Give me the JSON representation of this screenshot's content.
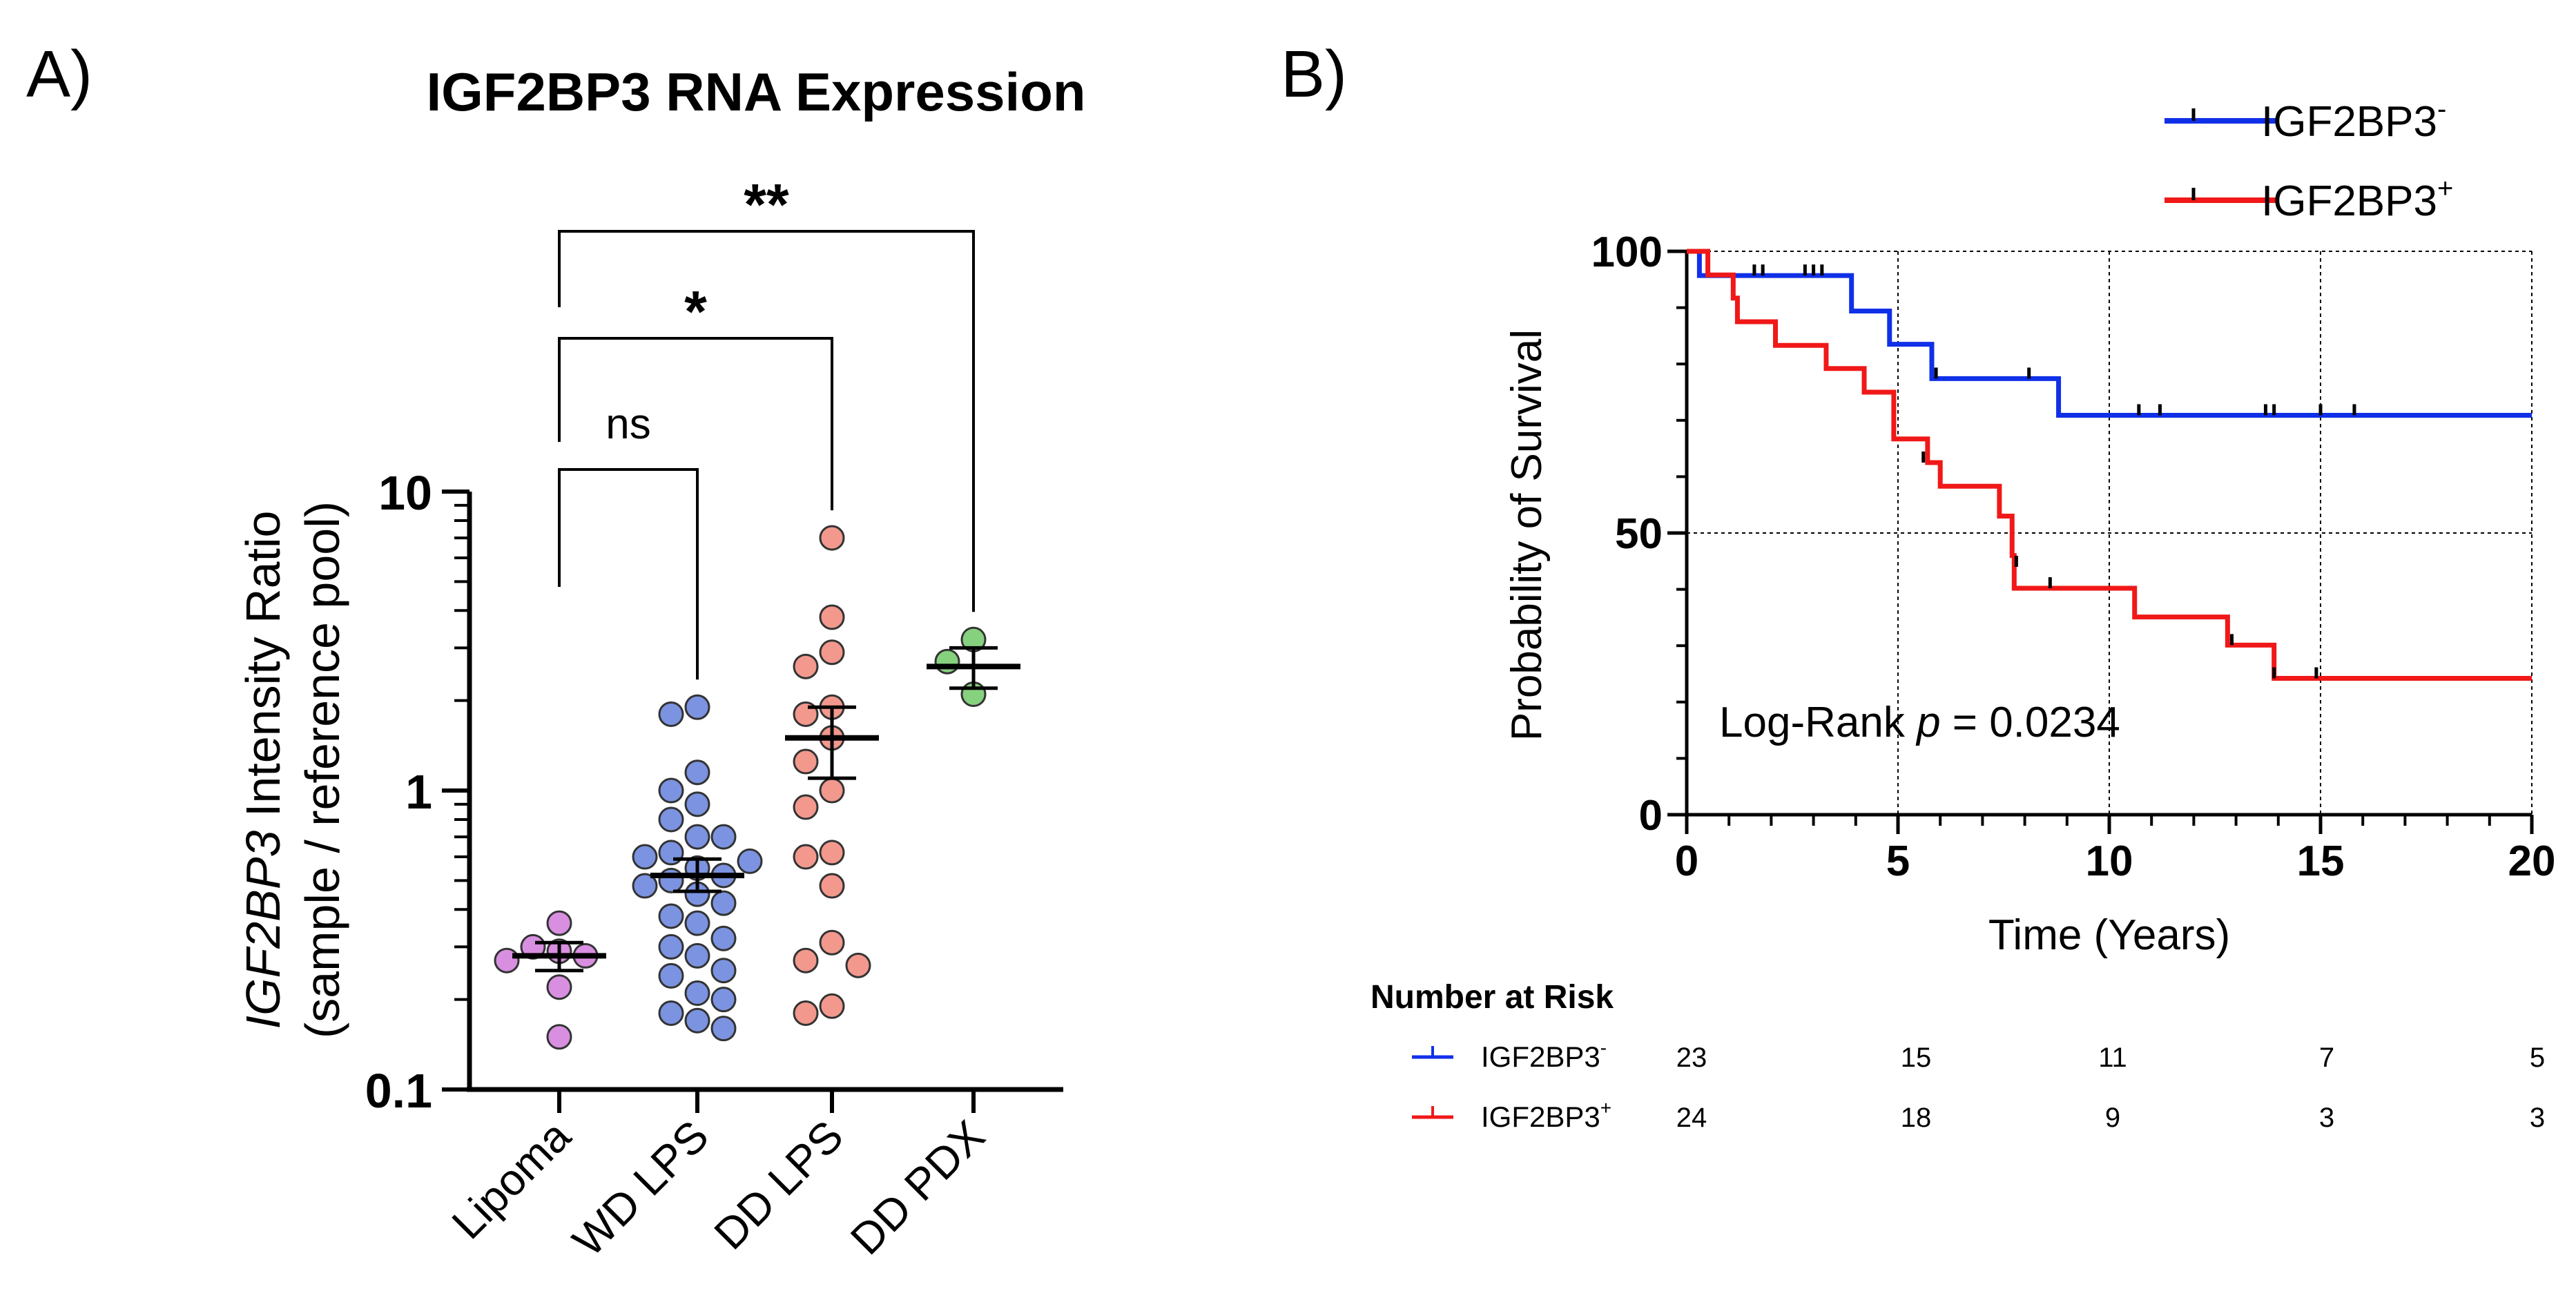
{
  "panel_a": {
    "label": "A)",
    "chart_data": {
      "type": "scatter",
      "title": "IGF2BP3 RNA Expression",
      "ylabel_italic": "IGF2BP3",
      "ylabel_rest": " Intensity Ratio",
      "ylabel_line2": "(sample / reference pool)",
      "yscale": "log",
      "ylim": [
        0.1,
        10
      ],
      "yticks": [
        {
          "value": 0.1,
          "label": "0.1"
        },
        {
          "value": 1,
          "label": "1"
        },
        {
          "value": 10,
          "label": "10"
        }
      ],
      "categories": [
        "Lipoma",
        "WD LPS",
        "DD LPS",
        "DD PDX"
      ],
      "colors": [
        "#d98fe0",
        "#7b93e0",
        "#f2988d",
        "#86d17e"
      ],
      "groups": [
        {
          "name": "Lipoma",
          "points": [
            0.36,
            0.3,
            0.29,
            0.28,
            0.27,
            0.22,
            0.15
          ],
          "mean": 0.28,
          "sem_low": 0.25,
          "sem_high": 0.31
        },
        {
          "name": "WD LPS",
          "points": [
            1.9,
            1.8,
            1.15,
            1.0,
            0.9,
            0.8,
            0.7,
            0.7,
            0.62,
            0.6,
            0.58,
            0.55,
            0.52,
            0.5,
            0.48,
            0.45,
            0.42,
            0.38,
            0.36,
            0.32,
            0.3,
            0.28,
            0.25,
            0.24,
            0.21,
            0.2,
            0.18,
            0.17,
            0.16
          ],
          "mean": 0.52,
          "sem_low": 0.46,
          "sem_high": 0.59
        },
        {
          "name": "DD LPS",
          "points": [
            7.0,
            3.8,
            2.9,
            2.6,
            1.9,
            1.8,
            1.5,
            1.25,
            1.0,
            0.88,
            0.62,
            0.6,
            0.48,
            0.31,
            0.27,
            0.26,
            0.19,
            0.18
          ],
          "mean": 1.5,
          "sem_low": 1.1,
          "sem_high": 1.9
        },
        {
          "name": "DD PDX",
          "points": [
            3.2,
            2.7,
            2.1
          ],
          "mean": 2.6,
          "sem_low": 2.2,
          "sem_high": 3.0
        }
      ],
      "comparisons": [
        {
          "from": "Lipoma",
          "to": "WD LPS",
          "label": "ns"
        },
        {
          "from": "Lipoma",
          "to": "DD LPS",
          "label": "*"
        },
        {
          "from": "Lipoma",
          "to": "DD PDX",
          "label": "**"
        }
      ]
    }
  },
  "panel_b": {
    "label": "B)",
    "chart_data": {
      "type": "line",
      "subtype": "kaplan-meier",
      "xlabel": "Time (Years)",
      "ylabel": "Probability of Survival",
      "xlim": [
        0,
        20
      ],
      "ylim": [
        0,
        100
      ],
      "xticks": [
        0,
        5,
        10,
        15,
        20
      ],
      "yticks": [
        0,
        50,
        100
      ],
      "grid": "dotted",
      "annotation": {
        "prefix": "Log-Rank ",
        "p": "p",
        "suffix": " = 0.0234"
      },
      "legend_position": "top-right",
      "series": [
        {
          "name": "IGF2BP3",
          "sup": "-",
          "color": "#1030e8",
          "steps": [
            [
              0,
              100
            ],
            [
              0.3,
              95.7
            ],
            [
              3.9,
              89.4
            ],
            [
              4.8,
              83.5
            ],
            [
              5.8,
              77.4
            ],
            [
              8.8,
              70.9
            ],
            [
              20,
              70.9
            ]
          ],
          "censors": [
            [
              0.5,
              95.7
            ],
            [
              1.6,
              95.7
            ],
            [
              1.8,
              95.7
            ],
            [
              2.8,
              95.7
            ],
            [
              3.0,
              95.7
            ],
            [
              3.2,
              95.7
            ],
            [
              5.9,
              77.4
            ],
            [
              8.1,
              77.4
            ],
            [
              10.7,
              70.9
            ],
            [
              11.2,
              70.9
            ],
            [
              13.7,
              70.9
            ],
            [
              13.9,
              70.9
            ],
            [
              15.0,
              70.9
            ],
            [
              15.8,
              70.9
            ]
          ]
        },
        {
          "name": "IGF2BP3",
          "sup": "+",
          "color": "#f01818",
          "steps": [
            [
              0,
              100
            ],
            [
              0.5,
              95.8
            ],
            [
              1.1,
              91.7
            ],
            [
              1.2,
              87.5
            ],
            [
              2.1,
              83.3
            ],
            [
              3.3,
              79.2
            ],
            [
              4.2,
              75.0
            ],
            [
              4.9,
              66.7
            ],
            [
              5.7,
              62.5
            ],
            [
              6.0,
              58.3
            ],
            [
              7.4,
              53.0
            ],
            [
              7.7,
              46.0
            ],
            [
              7.75,
              40.2
            ],
            [
              10.6,
              35.1
            ],
            [
              12.8,
              30.1
            ],
            [
              13.9,
              24.2
            ],
            [
              20,
              24.2
            ]
          ],
          "censors": [
            [
              5.6,
              62.5
            ],
            [
              7.8,
              44.0
            ],
            [
              8.6,
              40.2
            ],
            [
              12.9,
              30.1
            ],
            [
              13.9,
              24.2
            ],
            [
              14.9,
              24.2
            ]
          ]
        }
      ],
      "risk_table": {
        "title": "Number at Risk",
        "times": [
          0,
          5,
          10,
          15,
          20
        ],
        "rows": [
          {
            "name": "IGF2BP3",
            "sup": "-",
            "color": "#1030e8",
            "counts": [
              "23",
              "15",
              "11",
              "7",
              "5"
            ]
          },
          {
            "name": "IGF2BP3",
            "sup": "+",
            "color": "#f01818",
            "counts": [
              "24",
              "18",
              "9",
              "3",
              "3"
            ]
          }
        ]
      }
    }
  }
}
